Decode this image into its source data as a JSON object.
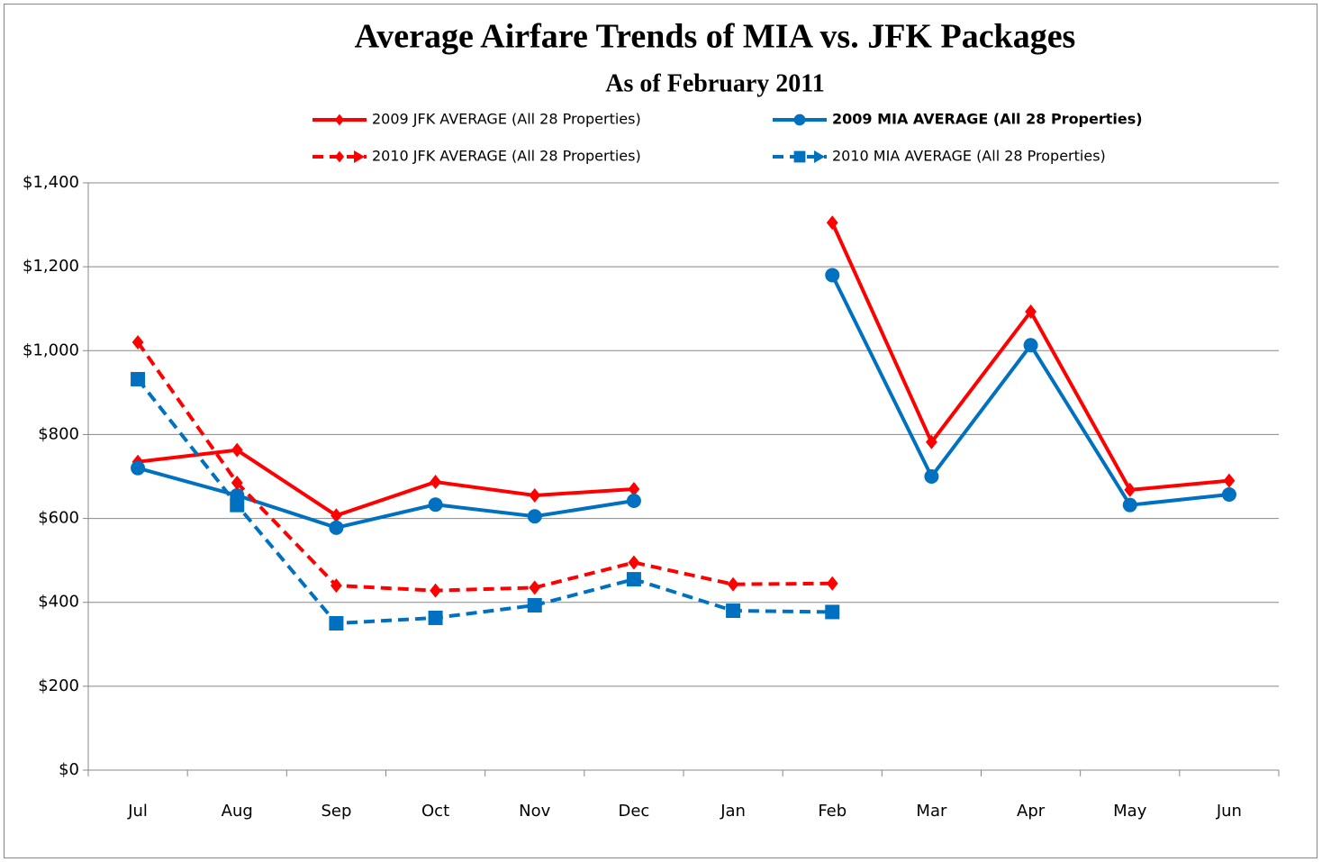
{
  "chart_data": {
    "type": "line",
    "title": "Average Airfare Trends of  MIA vs. JFK Packages",
    "subtitle": "As of February 2011",
    "categories": [
      "Jul",
      "Aug",
      "Sep",
      "Oct",
      "Nov",
      "Dec",
      "Jan",
      "Feb",
      "Mar",
      "Apr",
      "May",
      "Jun"
    ],
    "series": [
      {
        "name": "2009 JFK AVERAGE (All 28 Properties)",
        "color": "#ff0000",
        "dashed": false,
        "marker": "diamond",
        "values": [
          735,
          763,
          607,
          687,
          655,
          670,
          null,
          1305,
          782,
          1093,
          668,
          690
        ]
      },
      {
        "name": "2009 MIA AVERAGE (All 28 Properties)",
        "color": "#0070c0",
        "dashed": false,
        "marker": "circle",
        "bold": true,
        "values": [
          720,
          655,
          578,
          633,
          605,
          642,
          null,
          1180,
          700,
          1013,
          632,
          657
        ]
      },
      {
        "name": "2010 JFK AVERAGE (All 28 Properties)",
        "color": "#ff0000",
        "dashed": true,
        "marker": "diamond",
        "values": [
          1020,
          685,
          440,
          428,
          435,
          495,
          443,
          445,
          null,
          null,
          null,
          null
        ]
      },
      {
        "name": "2010 MIA AVERAGE (All 28 Properties)",
        "color": "#0070c0",
        "dashed": true,
        "marker": "square",
        "values": [
          932,
          632,
          350,
          363,
          393,
          455,
          380,
          377,
          null,
          null,
          null,
          null
        ]
      }
    ],
    "ylim": [
      0,
      1400
    ],
    "yticks": [
      {
        "value": 0,
        "label": "$0"
      },
      {
        "value": 200,
        "label": "$200"
      },
      {
        "value": 400,
        "label": "$400"
      },
      {
        "value": 600,
        "label": "$600"
      },
      {
        "value": 800,
        "label": "$800"
      },
      {
        "value": 1000,
        "label": "$1,000"
      },
      {
        "value": 1200,
        "label": "$1,200"
      },
      {
        "value": 1400,
        "label": "$1,400"
      }
    ],
    "grid": true
  }
}
